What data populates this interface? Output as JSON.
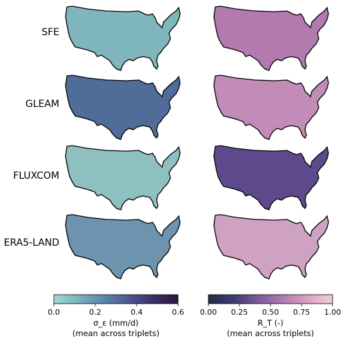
{
  "rows": [
    {
      "label": "SFE"
    },
    {
      "label": "GLEAM"
    },
    {
      "label": "FLUXCOM"
    },
    {
      "label": "ERA5-LAND"
    }
  ],
  "map_fill": [
    {
      "left": "#7fb5bd",
      "right": "#b27aae"
    },
    {
      "left": "#4f6d98",
      "right": "#c18cb7"
    },
    {
      "left": "#8ec0c2",
      "right": "#5e4a8a"
    },
    {
      "left": "#6d93ae",
      "right": "#cfa2c3"
    }
  ],
  "colorbars": [
    {
      "id": "sigma",
      "ticks": [
        "0.0",
        "0.2",
        "0.4",
        "0.6"
      ],
      "tick_values": [
        0.0,
        0.2,
        0.4,
        0.6
      ],
      "range": [
        0.0,
        0.6
      ],
      "label_line1": "σ_ε (mm/d)",
      "label_line2": "(mean across triplets)",
      "colors": [
        "#a3d9ce",
        "#7ab3bd",
        "#5b86a8",
        "#4c5991",
        "#3d3168",
        "#2a1540"
      ]
    },
    {
      "id": "rt",
      "ticks": [
        "0.00",
        "0.25",
        "0.50",
        "0.75",
        "1.00"
      ],
      "tick_values": [
        0.0,
        0.25,
        0.5,
        0.75,
        1.0
      ],
      "range": [
        0.0,
        1.0
      ],
      "label_line1": "R_T (-)",
      "label_line2": "(mean across triplets)",
      "colors": [
        "#1f2d46",
        "#3e3b72",
        "#7a5a9e",
        "#b27aae",
        "#d9a4c3",
        "#f2cdd9"
      ]
    }
  ]
}
